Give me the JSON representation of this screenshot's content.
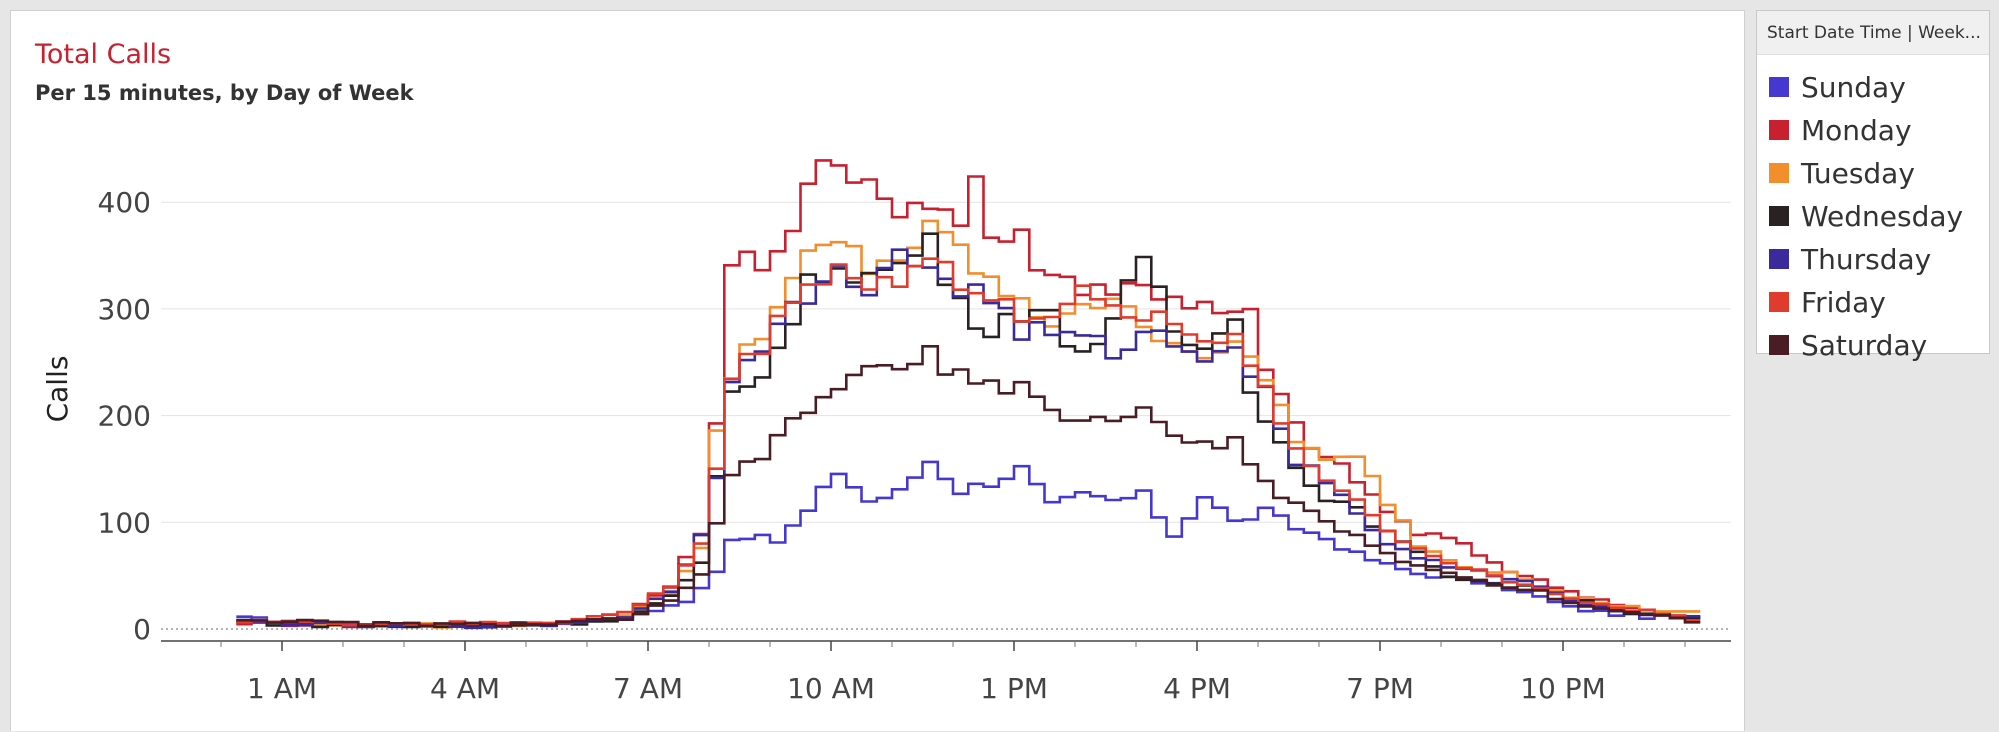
{
  "header": {
    "title": "Total Calls",
    "subtitle": "Per 15 minutes, by Day of Week"
  },
  "legend": {
    "title": "Start Date Time | Week...",
    "items": [
      {
        "label": "Sunday",
        "color": "#4538d0"
      },
      {
        "label": "Monday",
        "color": "#c8202f"
      },
      {
        "label": "Tuesday",
        "color": "#f28e2c"
      },
      {
        "label": "Wednesday",
        "color": "#2a2222"
      },
      {
        "label": "Thursday",
        "color": "#3a2a9c"
      },
      {
        "label": "Friday",
        "color": "#e03c2e"
      },
      {
        "label": "Saturday",
        "color": "#4a1c24"
      }
    ]
  },
  "chart_data": {
    "type": "line",
    "title": "Total Calls",
    "subtitle": "Per 15 minutes, by Day of Week",
    "xlabel": "",
    "ylabel": "Calls",
    "ylim": [
      -22,
      450
    ],
    "yticks": [
      "0",
      "100",
      "200",
      "300",
      "400"
    ],
    "xticks": [
      "1 AM",
      "4 AM",
      "7 AM",
      "10 AM",
      "1 PM",
      "4 PM",
      "7 PM",
      "10 PM"
    ],
    "x_unit": "hour of day",
    "x_start": 0.25,
    "x_step": 0.25,
    "grid": true,
    "legend_position": "right",
    "series": [
      {
        "name": "Sunday",
        "color": "#4538d0",
        "anchors": [
          [
            0.25,
            10
          ],
          [
            2,
            4
          ],
          [
            4,
            3
          ],
          [
            5.5,
            5
          ],
          [
            6.5,
            10
          ],
          [
            7.5,
            25
          ],
          [
            8,
            55
          ],
          [
            8.3,
            90
          ],
          [
            9,
            82
          ],
          [
            9.5,
            110
          ],
          [
            10,
            148
          ],
          [
            10.5,
            120
          ],
          [
            11,
            128
          ],
          [
            11.5,
            158
          ],
          [
            12,
            130
          ],
          [
            12.5,
            138
          ],
          [
            13,
            150
          ],
          [
            13.5,
            115
          ],
          [
            14,
            125
          ],
          [
            14.5,
            120
          ],
          [
            15,
            125
          ],
          [
            15.5,
            88
          ],
          [
            16,
            125
          ],
          [
            16.5,
            100
          ],
          [
            17,
            110
          ],
          [
            17.5,
            95
          ],
          [
            18,
            85
          ],
          [
            18.5,
            70
          ],
          [
            19,
            60
          ],
          [
            19.5,
            52
          ],
          [
            20,
            48
          ],
          [
            20.5,
            44
          ],
          [
            21,
            38
          ],
          [
            21.5,
            30
          ],
          [
            22,
            20
          ],
          [
            23,
            12
          ],
          [
            24,
            10
          ]
        ]
      },
      {
        "name": "Monday",
        "color": "#c8202f",
        "anchors": [
          [
            0.25,
            6
          ],
          [
            2,
            3
          ],
          [
            4,
            4
          ],
          [
            5.5,
            7
          ],
          [
            6.5,
            15
          ],
          [
            7.25,
            40
          ],
          [
            7.75,
            90
          ],
          [
            8,
            200
          ],
          [
            8.2,
            330
          ],
          [
            8.5,
            345
          ],
          [
            9,
            355
          ],
          [
            9.5,
            410
          ],
          [
            9.75,
            445
          ],
          [
            10,
            420
          ],
          [
            10.5,
            410
          ],
          [
            11,
            400
          ],
          [
            11.5,
            405
          ],
          [
            12,
            380
          ],
          [
            12.25,
            425
          ],
          [
            12.5,
            370
          ],
          [
            13,
            365
          ],
          [
            13.5,
            330
          ],
          [
            14,
            325
          ],
          [
            14.5,
            320
          ],
          [
            15,
            320
          ],
          [
            15.5,
            315
          ],
          [
            16,
            300
          ],
          [
            16.5,
            290
          ],
          [
            16.75,
            300
          ],
          [
            17,
            240
          ],
          [
            17.5,
            190
          ],
          [
            18,
            160
          ],
          [
            18.5,
            140
          ],
          [
            19,
            110
          ],
          [
            19.5,
            90
          ],
          [
            20,
            85
          ],
          [
            20.5,
            70
          ],
          [
            21,
            55
          ],
          [
            21.5,
            45
          ],
          [
            22,
            35
          ],
          [
            23,
            20
          ],
          [
            24,
            10
          ]
        ]
      },
      {
        "name": "Tuesday",
        "color": "#f28e2c",
        "anchors": [
          [
            0.25,
            8
          ],
          [
            2,
            4
          ],
          [
            4,
            3
          ],
          [
            5.5,
            6
          ],
          [
            6.5,
            14
          ],
          [
            7.25,
            35
          ],
          [
            7.75,
            75
          ],
          [
            8,
            180
          ],
          [
            8.25,
            240
          ],
          [
            8.5,
            265
          ],
          [
            9,
            300
          ],
          [
            9.5,
            345
          ],
          [
            10,
            360
          ],
          [
            10.5,
            340
          ],
          [
            11,
            350
          ],
          [
            11.5,
            370
          ],
          [
            12,
            355
          ],
          [
            12.5,
            325
          ],
          [
            13,
            300
          ],
          [
            13.5,
            290
          ],
          [
            14,
            310
          ],
          [
            14.5,
            300
          ],
          [
            15,
            290
          ],
          [
            15.5,
            270
          ],
          [
            16,
            260
          ],
          [
            16.5,
            260
          ],
          [
            16.75,
            250
          ],
          [
            17,
            235
          ],
          [
            17.5,
            180
          ],
          [
            18,
            155
          ],
          [
            18.5,
            160
          ],
          [
            19,
            120
          ],
          [
            19.5,
            80
          ],
          [
            20,
            65
          ],
          [
            20.5,
            55
          ],
          [
            21,
            55
          ],
          [
            21.5,
            40
          ],
          [
            22,
            30
          ],
          [
            23,
            20
          ],
          [
            24,
            15
          ]
        ]
      },
      {
        "name": "Wednesday",
        "color": "#2a2222",
        "anchors": [
          [
            0.25,
            6
          ],
          [
            2,
            3
          ],
          [
            4,
            2
          ],
          [
            5.5,
            5
          ],
          [
            6.5,
            10
          ],
          [
            7.25,
            30
          ],
          [
            7.75,
            60
          ],
          [
            8,
            140
          ],
          [
            8.25,
            220
          ],
          [
            8.5,
            230
          ],
          [
            9,
            260
          ],
          [
            9.5,
            320
          ],
          [
            10,
            345
          ],
          [
            10.5,
            330
          ],
          [
            11,
            340
          ],
          [
            11.5,
            365
          ],
          [
            12,
            300
          ],
          [
            12.5,
            285
          ],
          [
            13,
            300
          ],
          [
            13.5,
            290
          ],
          [
            14,
            260
          ],
          [
            14.5,
            290
          ],
          [
            15,
            340
          ],
          [
            15.5,
            280
          ],
          [
            16,
            260
          ],
          [
            16.5,
            300
          ],
          [
            16.75,
            230
          ],
          [
            17,
            200
          ],
          [
            17.5,
            150
          ],
          [
            18,
            125
          ],
          [
            18.5,
            110
          ],
          [
            19,
            90
          ],
          [
            19.5,
            70
          ],
          [
            20,
            50
          ],
          [
            20.5,
            45
          ],
          [
            21,
            40
          ],
          [
            21.5,
            38
          ],
          [
            22,
            30
          ],
          [
            23,
            15
          ],
          [
            24,
            8
          ]
        ]
      },
      {
        "name": "Thursday",
        "color": "#3a2a9c",
        "anchors": [
          [
            0.25,
            7
          ],
          [
            2,
            3
          ],
          [
            4,
            3
          ],
          [
            5.5,
            5
          ],
          [
            6.5,
            12
          ],
          [
            7.25,
            35
          ],
          [
            7.75,
            90
          ],
          [
            8,
            140
          ],
          [
            8.25,
            240
          ],
          [
            8.5,
            260
          ],
          [
            9,
            280
          ],
          [
            9.5,
            315
          ],
          [
            10,
            330
          ],
          [
            10.5,
            325
          ],
          [
            11,
            345
          ],
          [
            11.5,
            340
          ],
          [
            12,
            320
          ],
          [
            12.5,
            310
          ],
          [
            13,
            280
          ],
          [
            13.5,
            275
          ],
          [
            14,
            270
          ],
          [
            14.5,
            260
          ],
          [
            15,
            280
          ],
          [
            15.5,
            265
          ],
          [
            16,
            260
          ],
          [
            16.5,
            270
          ],
          [
            16.75,
            240
          ],
          [
            17,
            220
          ],
          [
            17.5,
            160
          ],
          [
            18,
            140
          ],
          [
            18.5,
            110
          ],
          [
            19,
            80
          ],
          [
            19.5,
            65
          ],
          [
            20,
            60
          ],
          [
            20.5,
            55
          ],
          [
            21,
            48
          ],
          [
            21.5,
            40
          ],
          [
            22,
            25
          ],
          [
            23,
            15
          ],
          [
            24,
            10
          ]
        ]
      },
      {
        "name": "Friday",
        "color": "#e03c2e",
        "anchors": [
          [
            0.25,
            8
          ],
          [
            2,
            5
          ],
          [
            4,
            5
          ],
          [
            5.5,
            7
          ],
          [
            6.5,
            15
          ],
          [
            7.25,
            40
          ],
          [
            7.75,
            80
          ],
          [
            8,
            150
          ],
          [
            8.25,
            235
          ],
          [
            8.5,
            250
          ],
          [
            9,
            285
          ],
          [
            9.5,
            330
          ],
          [
            10,
            340
          ],
          [
            10.5,
            320
          ],
          [
            11,
            330
          ],
          [
            11.5,
            355
          ],
          [
            12,
            320
          ],
          [
            12.5,
            305
          ],
          [
            13,
            295
          ],
          [
            13.5,
            300
          ],
          [
            14,
            310
          ],
          [
            14.5,
            295
          ],
          [
            15,
            300
          ],
          [
            15.5,
            285
          ],
          [
            16,
            270
          ],
          [
            16.5,
            280
          ],
          [
            16.75,
            245
          ],
          [
            17,
            225
          ],
          [
            17.5,
            170
          ],
          [
            18,
            140
          ],
          [
            18.5,
            120
          ],
          [
            19,
            95
          ],
          [
            19.5,
            75
          ],
          [
            20,
            60
          ],
          [
            20.5,
            55
          ],
          [
            21,
            45
          ],
          [
            21.5,
            38
          ],
          [
            22,
            28
          ],
          [
            23,
            18
          ],
          [
            24,
            10
          ]
        ]
      },
      {
        "name": "Saturday",
        "color": "#4a1c24",
        "anchors": [
          [
            0.25,
            9
          ],
          [
            2,
            5
          ],
          [
            4,
            4
          ],
          [
            5.5,
            5
          ],
          [
            6.5,
            10
          ],
          [
            7.25,
            25
          ],
          [
            7.75,
            50
          ],
          [
            8,
            100
          ],
          [
            8.25,
            140
          ],
          [
            8.5,
            155
          ],
          [
            9,
            175
          ],
          [
            9.5,
            205
          ],
          [
            10,
            230
          ],
          [
            10.5,
            240
          ],
          [
            11,
            245
          ],
          [
            11.5,
            255
          ],
          [
            12,
            240
          ],
          [
            12.5,
            225
          ],
          [
            13,
            235
          ],
          [
            13.5,
            200
          ],
          [
            14,
            200
          ],
          [
            14.5,
            195
          ],
          [
            15,
            205
          ],
          [
            15.5,
            180
          ],
          [
            16,
            170
          ],
          [
            16.5,
            180
          ],
          [
            16.75,
            150
          ],
          [
            17,
            140
          ],
          [
            17.5,
            115
          ],
          [
            18,
            100
          ],
          [
            18.5,
            85
          ],
          [
            19,
            70
          ],
          [
            19.5,
            60
          ],
          [
            20,
            52
          ],
          [
            20.5,
            45
          ],
          [
            21,
            40
          ],
          [
            21.5,
            35
          ],
          [
            22,
            25
          ],
          [
            23,
            15
          ],
          [
            24,
            8
          ]
        ]
      }
    ]
  }
}
